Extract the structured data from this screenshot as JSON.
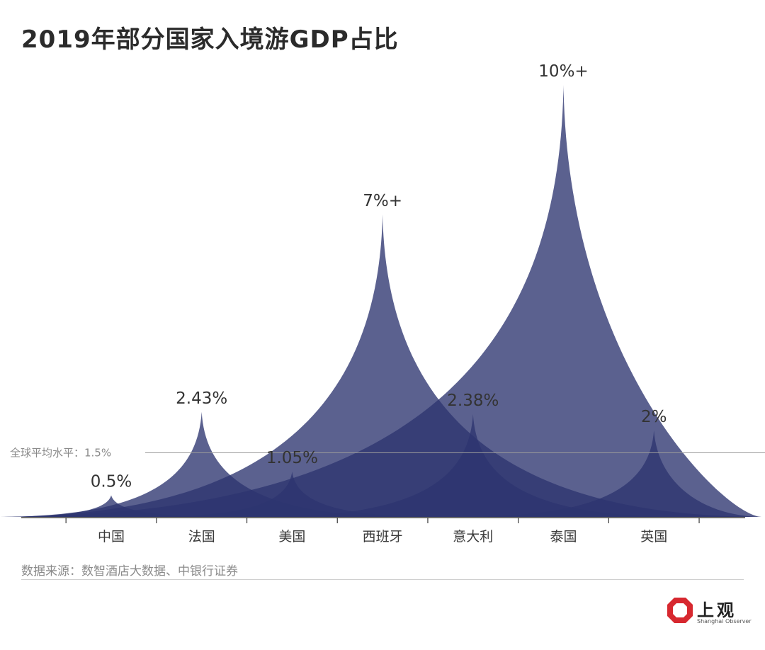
{
  "chart_data": {
    "type": "area",
    "title": "2019年部分国家入境游GDP占比",
    "categories": [
      "中国",
      "法国",
      "美国",
      "西班牙",
      "意大利",
      "泰国",
      "英国"
    ],
    "values": [
      0.5,
      2.43,
      1.05,
      7.0,
      2.38,
      10.0,
      2.0
    ],
    "value_labels": [
      "0.5%",
      "2.43%",
      "1.05%",
      "7%+",
      "2.38%",
      "10%+",
      "2%"
    ],
    "reference_line": {
      "label": "全球平均水平：1.5%",
      "value": 1.5
    },
    "ylim": [
      0,
      10
    ],
    "series_color": "#2d356f",
    "xlabel": "",
    "ylabel": ""
  },
  "source": "数据来源：数智酒店大数据、中银行证券",
  "brand": {
    "name": "上观",
    "sub": "Shanghai Observer",
    "color": "#d7282f"
  }
}
